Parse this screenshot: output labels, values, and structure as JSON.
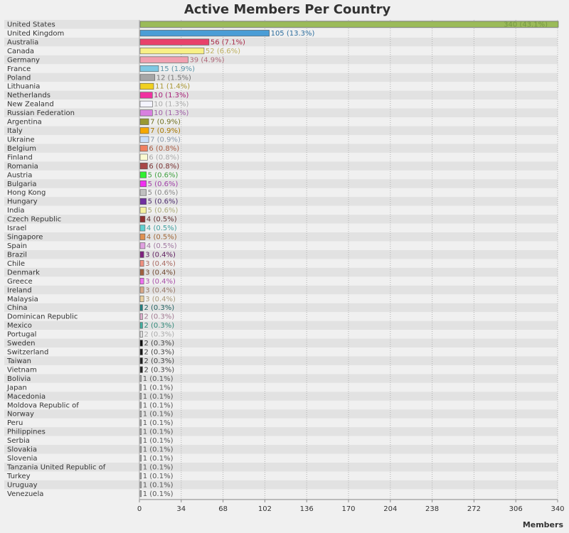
{
  "chart_data": {
    "type": "bar",
    "orientation": "horizontal",
    "title": "Active Members Per Country",
    "xlabel": "Members",
    "ylabel": "",
    "xlim": [
      0,
      340
    ],
    "xticks": [
      0,
      34,
      68,
      102,
      136,
      170,
      204,
      238,
      272,
      306,
      340
    ],
    "grid": true,
    "categories": [
      "United States",
      "United Kingdom",
      "Australia",
      "Canada",
      "Germany",
      "France",
      "Poland",
      "Lithuania",
      "Netherlands",
      "New Zealand",
      "Russian Federation",
      "Argentina",
      "Italy",
      "Ukraine",
      "Belgium",
      "Finland",
      "Romania",
      "Austria",
      "Bulgaria",
      "Hong Kong",
      "Hungary",
      "India",
      "Czech Republic",
      "Israel",
      "Singapore",
      "Spain",
      "Brazil",
      "Chile",
      "Denmark",
      "Greece",
      "Ireland",
      "Malaysia",
      "China",
      "Dominican Republic",
      "Mexico",
      "Portugal",
      "Sweden",
      "Switzerland",
      "Taiwan",
      "Vietnam",
      "Bolivia",
      "Japan",
      "Macedonia",
      "Moldova  Republic of",
      "Norway",
      "Peru",
      "Philippines",
      "Serbia",
      "Slovakia",
      "Slovenia",
      "Tanzania  United Republic of",
      "Turkey",
      "Uruguay",
      "Venezuela"
    ],
    "values": [
      340,
      105,
      56,
      52,
      39,
      15,
      12,
      11,
      10,
      10,
      10,
      7,
      7,
      7,
      6,
      6,
      6,
      5,
      5,
      5,
      5,
      5,
      4,
      4,
      4,
      4,
      3,
      3,
      3,
      3,
      3,
      3,
      2,
      2,
      2,
      2,
      2,
      2,
      2,
      2,
      1,
      1,
      1,
      1,
      1,
      1,
      1,
      1,
      1,
      1,
      1,
      1,
      1,
      1
    ],
    "value_labels": [
      "340 (43.1%)",
      "105 (13.3%)",
      "56 (7.1%)",
      "52 (6.6%)",
      "39 (4.9%)",
      "15 (1.9%)",
      "12 (1.5%)",
      "11 (1.4%)",
      "10 (1.3%)",
      "10 (1.3%)",
      "10 (1.3%)",
      "7 (0.9%)",
      "7 (0.9%)",
      "7 (0.9%)",
      "6 (0.8%)",
      "6 (0.8%)",
      "6 (0.8%)",
      "5 (0.6%)",
      "5 (0.6%)",
      "5 (0.6%)",
      "5 (0.6%)",
      "5 (0.6%)",
      "4 (0.5%)",
      "4 (0.5%)",
      "4 (0.5%)",
      "4 (0.5%)",
      "3 (0.4%)",
      "3 (0.4%)",
      "3 (0.4%)",
      "3 (0.4%)",
      "3 (0.4%)",
      "3 (0.4%)",
      "2 (0.3%)",
      "2 (0.3%)",
      "2 (0.3%)",
      "2 (0.3%)",
      "2 (0.3%)",
      "2 (0.3%)",
      "2 (0.3%)",
      "2 (0.3%)",
      "1 (0.1%)",
      "1 (0.1%)",
      "1 (0.1%)",
      "1 (0.1%)",
      "1 (0.1%)",
      "1 (0.1%)",
      "1 (0.1%)",
      "1 (0.1%)",
      "1 (0.1%)",
      "1 (0.1%)",
      "1 (0.1%)",
      "1 (0.1%)",
      "1 (0.1%)",
      "1 (0.1%)"
    ],
    "colors": [
      "#9bbb59",
      "#4a9dd6",
      "#e8426a",
      "#f8f087",
      "#f0a0b0",
      "#7ec8e3",
      "#a6a6a6",
      "#f0d020",
      "#f030a0",
      "#f4f4ff",
      "#d880e0",
      "#999933",
      "#f6a800",
      "#c8ddf8",
      "#f08060",
      "#fafad2",
      "#a84848",
      "#30f030",
      "#f030f0",
      "#c0c0c0",
      "#7030a0",
      "#f4f0a0",
      "#903030",
      "#60d0d0",
      "#e09050",
      "#e0a0e0",
      "#802080",
      "#f09080",
      "#a06040",
      "#f070f0",
      "#d8a888",
      "#e8d0a0",
      "#208080",
      "#e0b0d0",
      "#40b0a0",
      "#e0e0e0",
      "#101010",
      "#181818",
      "#202020",
      "#282828",
      "#c0c0c0",
      "#c0c0c0",
      "#c0c0c0",
      "#c0c0c0",
      "#c0c0c0",
      "#c0c0c0",
      "#c0c0c0",
      "#c0c0c0",
      "#c0c0c0",
      "#c0c0c0",
      "#c0c0c0",
      "#c0c0c0",
      "#c0c0c0",
      "#c0c0c0"
    ],
    "label_colors": [
      "#779944",
      "#2d6e9e",
      "#a82a48",
      "#bdb060",
      "#b06a7a",
      "#5b94a8",
      "#777777",
      "#a89530",
      "#a82078",
      "#aaaaaa",
      "#a060a8",
      "#707020",
      "#a87800",
      "#8899aa",
      "#a85a40",
      "#aaaaaa",
      "#783030",
      "#40a040",
      "#a040a8",
      "#888888",
      "#503070",
      "#aaaa77",
      "#603030",
      "#40a0a0",
      "#a06838",
      "#a078a0",
      "#602060",
      "#a86860",
      "#704830",
      "#a850a8",
      "#987868",
      "#a89878",
      "#206060",
      "#a07890",
      "#308878",
      "#aaaaaa",
      "#444444",
      "#444444",
      "#444444",
      "#444444",
      "#555555",
      "#555555",
      "#555555",
      "#555555",
      "#555555",
      "#555555",
      "#555555",
      "#555555",
      "#555555",
      "#555555",
      "#555555",
      "#555555",
      "#555555",
      "#555555"
    ]
  }
}
